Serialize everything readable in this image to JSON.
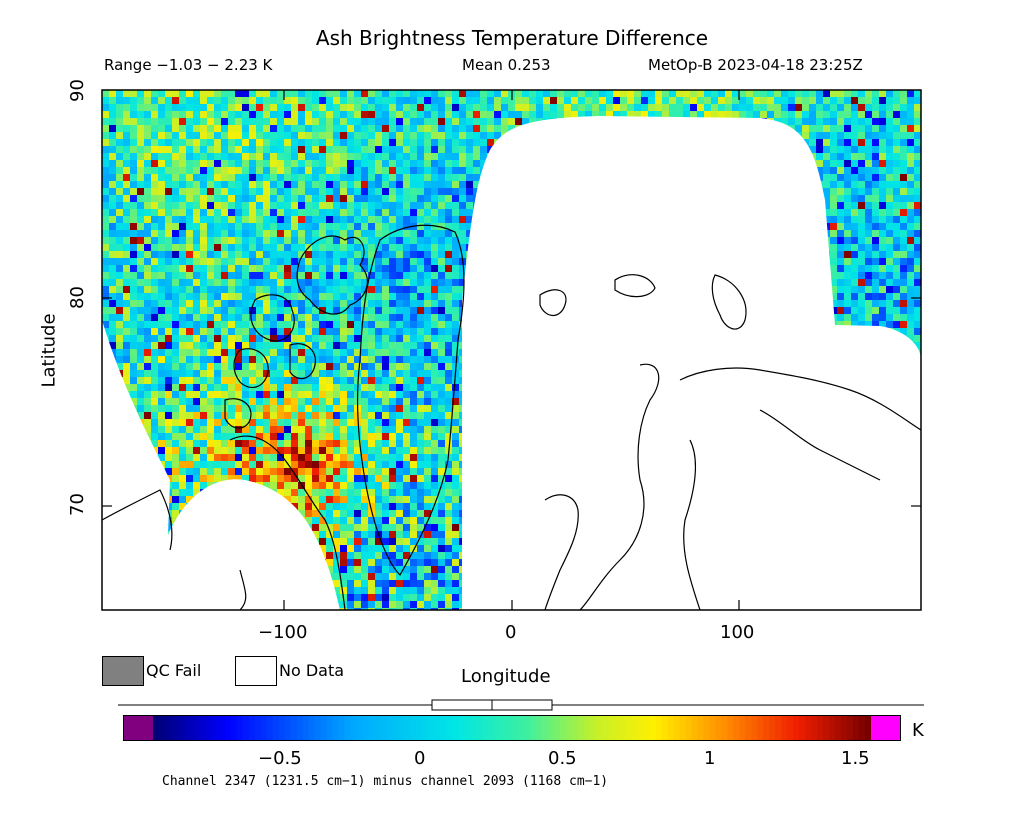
{
  "title": "Ash Brightness Temperature Difference",
  "header": {
    "range": "Range −1.03 − 2.23 K",
    "mean": "Mean 0.253",
    "satellite_time": "MetOp-B 2023-04-18 23:25Z"
  },
  "axes": {
    "xlabel": "Longitude",
    "ylabel": "Latitude",
    "xticks": [
      "−100",
      "0",
      "100"
    ],
    "yticks": [
      "90",
      "80",
      "70"
    ],
    "xlim": [
      -180,
      180
    ],
    "ylim": [
      65,
      90
    ]
  },
  "legend": {
    "qc_fail": "QC Fail",
    "no_data": "No Data",
    "qc_fail_color": "#808080",
    "no_data_color": "#ffffff"
  },
  "colorbar": {
    "ticks": [
      "−0.5",
      "0",
      "0.5",
      "1",
      "1.5"
    ],
    "unit": "K",
    "under_color": "#800080",
    "over_color": "#ff00ff"
  },
  "footnote": "Channel 2347 (1231.5 cm−1) minus channel 2093 (1168 cm−1)",
  "chart_data": {
    "type": "heatmap",
    "title": "Ash Brightness Temperature Difference",
    "xlabel": "Longitude",
    "ylabel": "Latitude",
    "xlim": [
      -180,
      180
    ],
    "ylim": [
      65,
      90
    ],
    "color_range": [
      -1.0,
      1.6
    ],
    "colorbar_unit": "K",
    "data_range": [
      -1.03,
      2.23
    ],
    "mean": 0.253,
    "projection": "cylindrical",
    "grid": false
  }
}
